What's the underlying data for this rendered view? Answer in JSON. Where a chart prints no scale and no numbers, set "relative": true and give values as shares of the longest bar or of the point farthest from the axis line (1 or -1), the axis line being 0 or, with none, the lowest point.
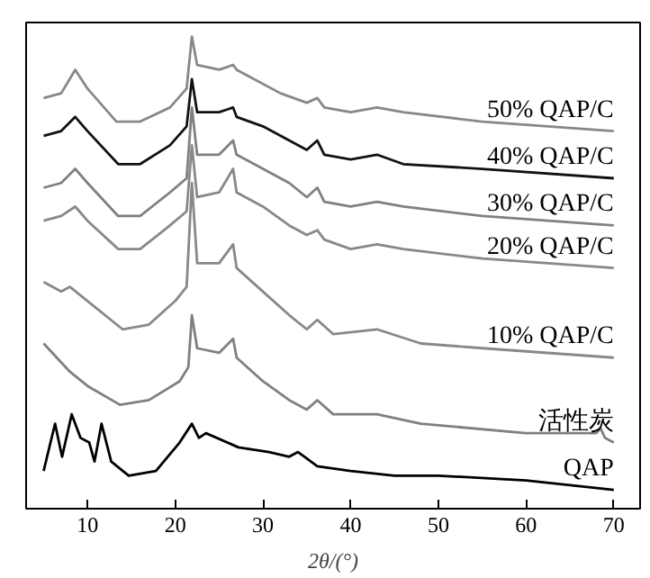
{
  "chart_data": {
    "type": "line",
    "relative": true,
    "xlabel": "2θ/(°)",
    "xlim": [
      3,
      73
    ],
    "xticks": [
      10,
      20,
      30,
      40,
      50,
      60,
      70
    ],
    "grid": false,
    "series": [
      {
        "name": "50% QAP/C",
        "color": "#888888",
        "x": [
          5,
          7,
          8.6,
          10,
          13.3,
          16,
          19.4,
          21.3,
          21.9,
          22.5,
          25,
          26.6,
          27,
          28,
          32,
          35,
          36.2,
          37,
          40,
          43,
          46,
          55,
          70
        ],
        "values": [
          0.87,
          0.88,
          0.93,
          0.89,
          0.82,
          0.82,
          0.85,
          0.89,
          1.0,
          0.94,
          0.93,
          0.94,
          0.93,
          0.92,
          0.88,
          0.86,
          0.87,
          0.85,
          0.84,
          0.85,
          0.84,
          0.82,
          0.8
        ]
      },
      {
        "name": "40% QAP/C",
        "color": "#111111",
        "x": [
          5,
          7,
          8.6,
          10,
          13.5,
          16,
          19.4,
          21.3,
          21.9,
          22.5,
          25,
          26.6,
          27,
          30,
          33,
          35,
          36.2,
          37,
          40,
          43,
          46,
          55,
          70
        ],
        "values": [
          0.79,
          0.8,
          0.83,
          0.8,
          0.73,
          0.73,
          0.77,
          0.81,
          0.91,
          0.84,
          0.84,
          0.85,
          0.83,
          0.81,
          0.78,
          0.76,
          0.78,
          0.75,
          0.74,
          0.75,
          0.73,
          0.72,
          0.7
        ]
      },
      {
        "name": "30% QAP/C",
        "color": "#808080",
        "x": [
          5,
          7,
          8.6,
          10,
          13.5,
          16,
          19.4,
          21.3,
          21.9,
          22.5,
          25,
          26.6,
          27,
          30,
          33,
          35,
          36.2,
          37,
          40,
          43,
          46,
          55,
          70
        ],
        "values": [
          0.68,
          0.69,
          0.72,
          0.69,
          0.62,
          0.62,
          0.67,
          0.7,
          0.85,
          0.75,
          0.75,
          0.78,
          0.75,
          0.72,
          0.69,
          0.66,
          0.68,
          0.65,
          0.64,
          0.65,
          0.64,
          0.62,
          0.6
        ]
      },
      {
        "name": "20% QAP/C",
        "color": "#888888",
        "x": [
          5,
          7,
          8.6,
          10,
          13.5,
          16,
          19.4,
          21.3,
          21.9,
          22.5,
          25,
          26.6,
          27,
          30,
          33,
          35,
          36.2,
          37,
          40,
          43,
          46,
          55,
          70
        ],
        "values": [
          0.61,
          0.62,
          0.64,
          0.61,
          0.55,
          0.55,
          0.6,
          0.63,
          0.77,
          0.66,
          0.67,
          0.72,
          0.67,
          0.64,
          0.6,
          0.58,
          0.59,
          0.57,
          0.55,
          0.56,
          0.55,
          0.53,
          0.51
        ]
      },
      {
        "name": "10% QAP/C",
        "color": "#888888",
        "x": [
          5,
          7,
          8,
          10,
          14,
          17,
          20,
          21.3,
          21.9,
          22.5,
          25,
          26.6,
          27,
          30,
          33,
          35,
          36.2,
          38,
          43,
          48,
          55,
          70
        ],
        "values": [
          0.48,
          0.46,
          0.47,
          0.44,
          0.38,
          0.39,
          0.44,
          0.47,
          0.69,
          0.52,
          0.52,
          0.56,
          0.51,
          0.46,
          0.41,
          0.38,
          0.4,
          0.37,
          0.38,
          0.35,
          0.34,
          0.32
        ]
      },
      {
        "name": "活性炭",
        "color": "#808080",
        "x": [
          5,
          8,
          10,
          13.7,
          17,
          20.5,
          21.5,
          21.9,
          22.5,
          25,
          26.6,
          27,
          30,
          33,
          35,
          36.2,
          38,
          43,
          48,
          60,
          68,
          68.5,
          69,
          70
        ],
        "values": [
          0.35,
          0.29,
          0.26,
          0.22,
          0.23,
          0.27,
          0.3,
          0.41,
          0.34,
          0.33,
          0.36,
          0.32,
          0.27,
          0.23,
          0.21,
          0.23,
          0.2,
          0.2,
          0.18,
          0.16,
          0.16,
          0.17,
          0.15,
          0.14
        ]
      },
      {
        "name": "QAP",
        "color": "#000000",
        "x": [
          5,
          6.3,
          7.1,
          8.2,
          9.2,
          10.2,
          10.8,
          11.6,
          12.7,
          14.7,
          17.8,
          20.5,
          21.9,
          22.7,
          23.5,
          27.2,
          30.7,
          33,
          34,
          36.2,
          40,
          45,
          50,
          60,
          70
        ],
        "values": [
          0.08,
          0.18,
          0.11,
          0.2,
          0.15,
          0.14,
          0.1,
          0.18,
          0.1,
          0.07,
          0.08,
          0.14,
          0.18,
          0.15,
          0.16,
          0.13,
          0.12,
          0.11,
          0.12,
          0.09,
          0.08,
          0.07,
          0.07,
          0.06,
          0.04
        ]
      }
    ]
  }
}
